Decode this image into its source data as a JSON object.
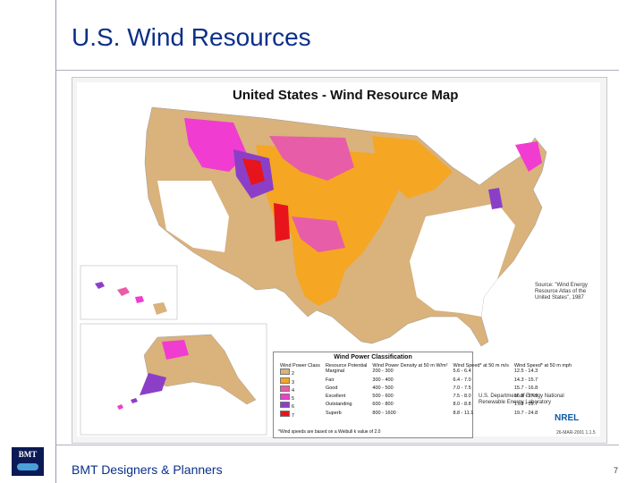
{
  "slide": {
    "title": "U.S. Wind Resources",
    "footer": "BMT Designers & Planners",
    "page_number": "7",
    "logo_text": "BMT"
  },
  "map": {
    "title": "United States - Wind Resource Map",
    "source_text": "Source: \"Wind Energy Resource Atlas of the United States\", 1987",
    "agency": "U.S. Department of Energy National Renewable Energy Laboratory",
    "nrel_label": "NREL",
    "date_stamp": "26-MAR-2001 1.1.5",
    "colors": {
      "marginal": "#d9b27c",
      "fair": "#f5a623",
      "good": "#e85da8",
      "excellent": "#f03cd0",
      "outstanding": "#8b3fc7",
      "superb": "#e8141c",
      "poor": "#ffffff",
      "water": "#ffffff"
    }
  },
  "legend": {
    "title": "Wind Power Classification",
    "headers": [
      "Wind Power Class",
      "Resource Potential",
      "Wind Power Density at 50 m W/m²",
      "Wind Speed* at 50 m m/s",
      "Wind Speed* at 50 m mph"
    ],
    "rows": [
      {
        "cls": "2",
        "potential": "Marginal",
        "density": "200 - 300",
        "ms": "5.6 - 6.4",
        "mph": "12.5 - 14.3",
        "color": "#d9b27c"
      },
      {
        "cls": "3",
        "potential": "Fair",
        "density": "300 - 400",
        "ms": "6.4 - 7.0",
        "mph": "14.3 - 15.7",
        "color": "#f5a623"
      },
      {
        "cls": "4",
        "potential": "Good",
        "density": "400 - 500",
        "ms": "7.0 - 7.5",
        "mph": "15.7 - 16.8",
        "color": "#e85da8"
      },
      {
        "cls": "5",
        "potential": "Excellent",
        "density": "500 - 600",
        "ms": "7.5 - 8.0",
        "mph": "16.8 - 17.9",
        "color": "#f03cd0"
      },
      {
        "cls": "6",
        "potential": "Outstanding",
        "density": "600 - 800",
        "ms": "8.0 - 8.8",
        "mph": "17.9 - 19.7",
        "color": "#8b3fc7"
      },
      {
        "cls": "7",
        "potential": "Superb",
        "density": "800 - 1600",
        "ms": "8.8 - 11.1",
        "mph": "19.7 - 24.8",
        "color": "#e8141c"
      }
    ],
    "note": "*Wind speeds are based on a Weibull k value of 2.0"
  }
}
